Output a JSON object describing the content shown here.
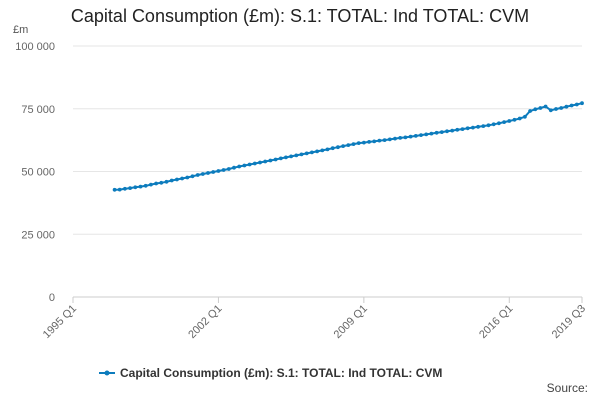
{
  "chart_data": {
    "type": "line",
    "title": "Capital Consumption (£m): S.1: TOTAL: Ind TOTAL: CVM",
    "y_unit_label": "£m",
    "ylim": [
      0,
      100000
    ],
    "y_ticks": [
      0,
      25000,
      50000,
      75000,
      100000
    ],
    "y_tick_labels": [
      "0",
      "25 000",
      "50 000",
      "75 000",
      "100 000"
    ],
    "x_tick_labels": [
      "1995 Q1",
      "2002 Q1",
      "2009 Q1",
      "2016 Q1",
      "2019 Q3"
    ],
    "x_tick_quarters": [
      "1995 Q1",
      "2002 Q1",
      "2009 Q1",
      "2016 Q1",
      "2019 Q3"
    ],
    "x_range": [
      "1995 Q1",
      "2019 Q3"
    ],
    "grid": true,
    "legend_position": "bottom",
    "series": [
      {
        "name": "Capital Consumption (£m): S.1: TOTAL: Ind TOTAL: CVM",
        "color": "#0d7cbd",
        "x": [
          "1997 Q1",
          "1997 Q2",
          "1997 Q3",
          "1997 Q4",
          "1998 Q1",
          "1998 Q2",
          "1998 Q3",
          "1998 Q4",
          "1999 Q1",
          "1999 Q2",
          "1999 Q3",
          "1999 Q4",
          "2000 Q1",
          "2000 Q2",
          "2000 Q3",
          "2000 Q4",
          "2001 Q1",
          "2001 Q2",
          "2001 Q3",
          "2001 Q4",
          "2002 Q1",
          "2002 Q2",
          "2002 Q3",
          "2002 Q4",
          "2003 Q1",
          "2003 Q2",
          "2003 Q3",
          "2003 Q4",
          "2004 Q1",
          "2004 Q2",
          "2004 Q3",
          "2004 Q4",
          "2005 Q1",
          "2005 Q2",
          "2005 Q3",
          "2005 Q4",
          "2006 Q1",
          "2006 Q2",
          "2006 Q3",
          "2006 Q4",
          "2007 Q1",
          "2007 Q2",
          "2007 Q3",
          "2007 Q4",
          "2008 Q1",
          "2008 Q2",
          "2008 Q3",
          "2008 Q4",
          "2009 Q1",
          "2009 Q2",
          "2009 Q3",
          "2009 Q4",
          "2010 Q1",
          "2010 Q2",
          "2010 Q3",
          "2010 Q4",
          "2011 Q1",
          "2011 Q2",
          "2011 Q3",
          "2011 Q4",
          "2012 Q1",
          "2012 Q2",
          "2012 Q3",
          "2012 Q4",
          "2013 Q1",
          "2013 Q2",
          "2013 Q3",
          "2013 Q4",
          "2014 Q1",
          "2014 Q2",
          "2014 Q3",
          "2014 Q4",
          "2015 Q1",
          "2015 Q2",
          "2015 Q3",
          "2015 Q4",
          "2016 Q1",
          "2016 Q2",
          "2016 Q3",
          "2016 Q4",
          "2017 Q1",
          "2017 Q2",
          "2017 Q3",
          "2017 Q4",
          "2018 Q1",
          "2018 Q2",
          "2018 Q3",
          "2018 Q4",
          "2019 Q1",
          "2019 Q2",
          "2019 Q3"
        ],
        "values": [
          42700,
          42800,
          43100,
          43400,
          43700,
          44000,
          44300,
          44800,
          45200,
          45500,
          45900,
          46400,
          46800,
          47200,
          47600,
          48100,
          48600,
          49000,
          49400,
          49800,
          50200,
          50600,
          51000,
          51500,
          52000,
          52400,
          52800,
          53200,
          53600,
          54000,
          54400,
          54800,
          55200,
          55600,
          56000,
          56400,
          56800,
          57200,
          57600,
          58000,
          58400,
          58800,
          59300,
          59700,
          60100,
          60500,
          60900,
          61300,
          61500,
          61800,
          62000,
          62300,
          62500,
          62800,
          63100,
          63400,
          63600,
          63900,
          64200,
          64500,
          64800,
          65100,
          65400,
          65700,
          66000,
          66300,
          66600,
          66900,
          67200,
          67500,
          67800,
          68100,
          68400,
          68800,
          69200,
          69700,
          70100,
          70600,
          71100,
          71800,
          74100,
          74800,
          75300,
          75900,
          74400,
          74900,
          75300,
          75800,
          76300,
          76700,
          77200
        ]
      }
    ],
    "source_label": "Source:"
  }
}
